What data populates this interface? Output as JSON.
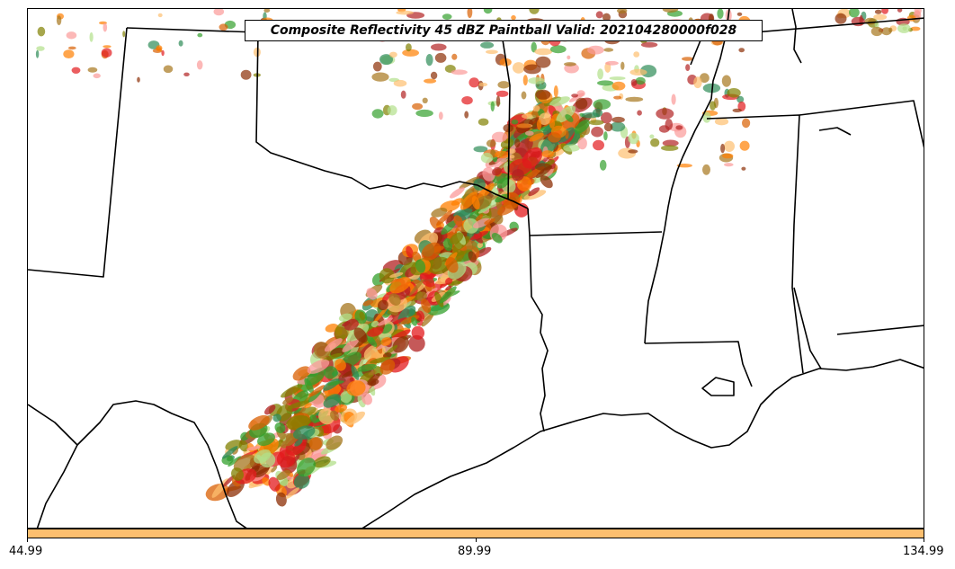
{
  "title": "Composite Reflectivity 45 dBZ Paintball Valid: 202104280000f028",
  "colorbar": {
    "color": "#fdbf6f",
    "ticks": [
      "44.99",
      "89.99",
      "134.99"
    ]
  },
  "map": {
    "background": "#ffffff",
    "boundary_color": "#000000",
    "member_colors": [
      "#e31a1c",
      "#ff7f00",
      "#fdbf6f",
      "#fb9a99",
      "#33a02c",
      "#b2df8a",
      "#8c2d04",
      "#a6761d",
      "#808000",
      "#2e8b57",
      "#b22222",
      "#d95f02"
    ]
  }
}
